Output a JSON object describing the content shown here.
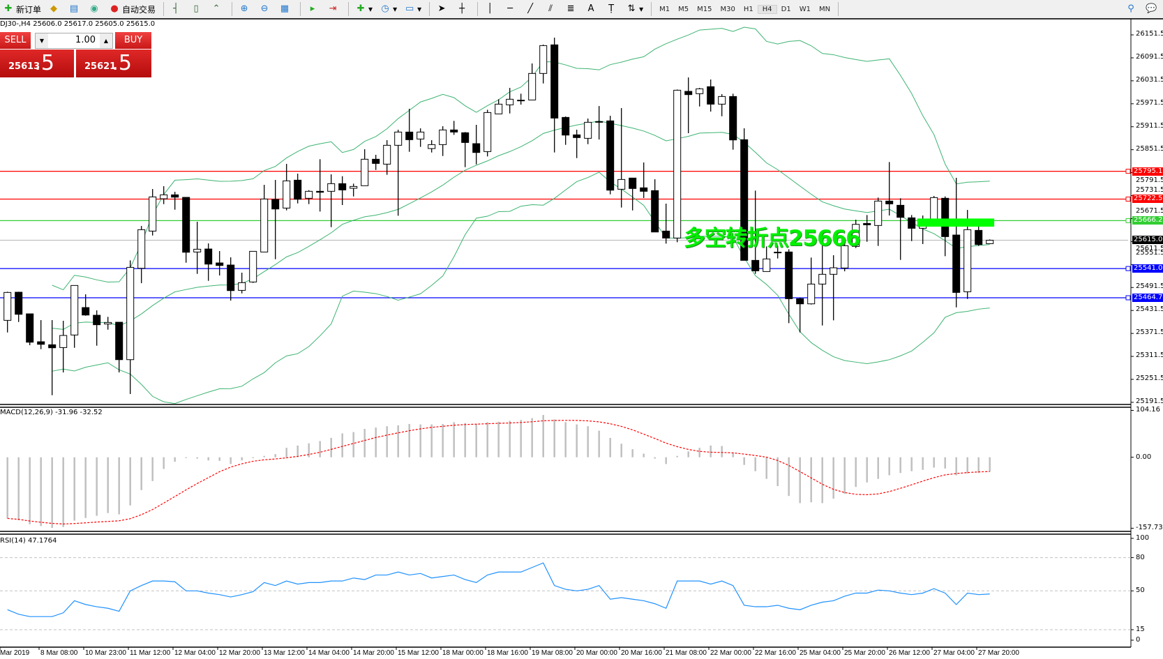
{
  "toolbar": {
    "new_order": "新订单",
    "auto_trading": "自动交易",
    "timeframes": [
      "M1",
      "M5",
      "M15",
      "M30",
      "H1",
      "H4",
      "D1",
      "W1",
      "MN"
    ],
    "active_timeframe": "H4",
    "icons": [
      "new-order-icon",
      "history-icon",
      "market-watch-icon",
      "signals-icon",
      "auto-trading-icon",
      "bar-chart-icon",
      "candlestick-icon",
      "line-chart-icon",
      "zoom-in-icon",
      "zoom-out-icon",
      "tile-windows-icon",
      "autoscroll-icon",
      "chart-shift-icon",
      "indicators-icon",
      "periods-icon",
      "templates-icon",
      "cursor-icon",
      "crosshair-icon",
      "vertical-line-icon",
      "horizontal-line-icon",
      "trendline-icon",
      "equidistant-channel-icon",
      "fibonacci-icon",
      "text-icon",
      "text-label-icon",
      "arrows-icon",
      "search-icon",
      "community-icon"
    ],
    "text_tool": "A"
  },
  "chart": {
    "header": "DJ30-,H4  25606.0 25617.0 25605.0 25615.0",
    "annotation": "多空转折点25666",
    "annotation_color": "#00f000"
  },
  "oneclick": {
    "sell_label": "SELL",
    "buy_label": "BUY",
    "lot": "1.00",
    "sell_price_main": "25613",
    "sell_price_frac": ".5",
    "buy_price_main": "25621",
    "buy_price_frac": ".5"
  },
  "price_axis": [
    "26151.5",
    "26091.5",
    "26031.5",
    "25971.5",
    "25911.5",
    "25851.5",
    "25791.5",
    "25731.5",
    "25671.5",
    "25611.5",
    "25551.5",
    "25491.5",
    "25431.5",
    "25371.5",
    "25311.5",
    "25251.5",
    "25191.5"
  ],
  "price_lines": [
    {
      "price": "25795.1",
      "color": "#ff0000"
    },
    {
      "price": "25722.5",
      "color": "#ff0000"
    },
    {
      "price": "25666.2",
      "color": "#32cd32"
    },
    {
      "price": "25615.0",
      "color": "#c0c0c0",
      "tag": "#000000"
    },
    {
      "price": "25541.0",
      "color": "#0000ff"
    },
    {
      "price": "25464.7",
      "color": "#0000ff"
    }
  ],
  "time_axis": [
    "Mar 2019",
    "8 Mar 08:00",
    "10 Mar 23:00",
    "11 Mar 12:00",
    "12 Mar 04:00",
    "12 Mar 20:00",
    "13 Mar 12:00",
    "14 Mar 04:00",
    "14 Mar 20:00",
    "15 Mar 12:00",
    "18 Mar 00:00",
    "18 Mar 16:00",
    "19 Mar 08:00",
    "20 Mar 00:00",
    "20 Mar 16:00",
    "21 Mar 08:00",
    "22 Mar 00:00",
    "22 Mar 16:00",
    "25 Mar 04:00",
    "25 Mar 20:00",
    "26 Mar 12:00",
    "27 Mar 04:00",
    "27 Mar 20:00"
  ],
  "macd": {
    "label": "MACD(12,26,9) -31.96 -32.52",
    "axis": [
      "104.16",
      "0.00",
      "-157.73"
    ],
    "histogram": [
      -136,
      -140,
      -149,
      -153,
      -157,
      -155,
      -141,
      -135,
      -130,
      -124,
      -127,
      -107,
      -73,
      -53,
      -26,
      -10,
      -2,
      -3,
      -7,
      -8,
      -15,
      -7,
      -2,
      3,
      7,
      21,
      26,
      31,
      36,
      43,
      53,
      56,
      63,
      66,
      69,
      71,
      74,
      73,
      73,
      74,
      78,
      76,
      74,
      78,
      79,
      81,
      83,
      87,
      94,
      84,
      78,
      73,
      69,
      59,
      43,
      30,
      18,
      8,
      -3,
      -15,
      3,
      13,
      21,
      26,
      25,
      10,
      -17,
      -31,
      -48,
      -64,
      -86,
      -102,
      -100,
      -102,
      -92,
      -81,
      -66,
      -56,
      -48,
      -40,
      -35,
      -31,
      -28,
      -23,
      -25,
      -40,
      -36,
      -35,
      -31.96
    ],
    "signal_color": "#ff0000",
    "histogram_color": "#c0c0c0"
  },
  "rsi": {
    "label": "RSI(14) 47.1764",
    "axis": [
      "100",
      "80",
      "50",
      "15",
      "0"
    ],
    "levels": [
      80,
      50,
      15
    ],
    "color": "#1e90ff",
    "values": [
      33.0,
      28.9,
      26.8,
      26.8,
      26.8,
      30.2,
      41.1,
      37.7,
      35.7,
      34.3,
      31.6,
      50.0,
      54.8,
      58.9,
      58.9,
      58.2,
      50.0,
      50.0,
      48.0,
      46.6,
      44.5,
      46.6,
      49.3,
      57.5,
      54.8,
      58.9,
      56.1,
      57.5,
      57.5,
      58.9,
      58.9,
      61.6,
      60.2,
      64.3,
      64.3,
      67.0,
      64.3,
      65.7,
      61.6,
      63.0,
      64.3,
      60.2,
      57.5,
      64.3,
      67.0,
      67.0,
      67.0,
      71.1,
      75.2,
      54.8,
      51.4,
      50.0,
      51.4,
      54.8,
      42.5,
      43.9,
      42.5,
      41.1,
      38.4,
      34.3,
      58.9,
      58.9,
      58.9,
      56.1,
      58.9,
      54.8,
      37.0,
      35.7,
      35.7,
      37.0,
      34.3,
      33.0,
      37.0,
      39.8,
      41.1,
      45.2,
      48.0,
      48.0,
      50.7,
      50.0,
      48.0,
      46.6,
      48.0,
      52.0,
      48.0,
      37.7,
      48.0,
      46.6,
      47.18
    ]
  },
  "bollinger_color": "#3cb371",
  "rectangle": {
    "price_top": 25671.7,
    "price_bottom": 25650.5,
    "from_bar": 81.5,
    "to_bar": 88.4,
    "color": "#00ff00"
  },
  "candles": [
    [
      25405.7,
      25480.4,
      25374.1,
      25478.6
    ],
    [
      25479.2,
      25480.4,
      25401.4,
      25421.5
    ],
    [
      25422.7,
      25422.7,
      25340.7,
      25348.6
    ],
    [
      25349.8,
      25406.3,
      25330.4,
      25343.1
    ],
    [
      25341.9,
      25406.3,
      25210.1,
      25334.0
    ],
    [
      25334.6,
      25404.5,
      25269.6,
      25366.2
    ],
    [
      25367.4,
      25496.8,
      25334.0,
      25496.8
    ],
    [
      25439.1,
      25473.7,
      25417.8,
      25419.6
    ],
    [
      25419.0,
      25431.8,
      25339.5,
      25394.2
    ],
    [
      25396.2,
      25414.8,
      25381.4,
      25400.2
    ],
    [
      25400.8,
      25400.8,
      25269.6,
      25303.0
    ],
    [
      25303.0,
      25562.4,
      25213.2,
      25544.1
    ],
    [
      25541.7,
      25652.2,
      25502.8,
      25642.5
    ],
    [
      25638.9,
      25748.8,
      25627.3,
      25728.2
    ],
    [
      25723.3,
      25756.1,
      25709.3,
      25733.6
    ],
    [
      25733.6,
      25741.5,
      25694.8,
      25727.5
    ],
    [
      25727.0,
      25727.0,
      25556.3,
      25583.6
    ],
    [
      25584.2,
      25663.2,
      25527.1,
      25591.5
    ],
    [
      25592.1,
      25606.7,
      25508.9,
      25552.6
    ],
    [
      25555.7,
      25586.7,
      25522.9,
      25549.0
    ],
    [
      25550.2,
      25570.3,
      25457.3,
      25483.4
    ],
    [
      25484.0,
      25530.2,
      25476.1,
      25504.1
    ],
    [
      25505.9,
      25586.0,
      25503.5,
      25586.0
    ],
    [
      25584.2,
      25759.7,
      25584.2,
      25722.7
    ],
    [
      25721.5,
      25772.5,
      25565.4,
      25696.6
    ],
    [
      25699.0,
      25814.4,
      25693.0,
      25770.1
    ],
    [
      25771.9,
      25788.9,
      25711.2,
      25722.1
    ],
    [
      25724.6,
      25745.8,
      25709.4,
      25742.8
    ],
    [
      25742.8,
      25826.6,
      25689.9,
      25740.3
    ],
    [
      25742.8,
      25787.1,
      25649.2,
      25762.8
    ],
    [
      25762.8,
      25782.2,
      25706.9,
      25746.4
    ],
    [
      25750.7,
      25762.8,
      25729.4,
      25755.5
    ],
    [
      25757.4,
      25852.7,
      25757.4,
      25826.6
    ],
    [
      25826.6,
      25838.1,
      25798.6,
      25815.6
    ],
    [
      25813.8,
      25876.4,
      25785.9,
      25863.0
    ],
    [
      25863.0,
      25903.7,
      25679.0,
      25897.6
    ],
    [
      25897.6,
      25958.4,
      25846.0,
      25877.6
    ],
    [
      25879.4,
      25907.3,
      25858.8,
      25897.6
    ],
    [
      25854.5,
      25876.4,
      25844.2,
      25864.8
    ],
    [
      25864.8,
      25912.8,
      25835.1,
      25903.1
    ],
    [
      25903.1,
      25926.8,
      25890.3,
      25897.6
    ],
    [
      25895.8,
      25897.6,
      25805.9,
      25870.3
    ],
    [
      25867.3,
      25916.5,
      25813.2,
      25844.2
    ],
    [
      25846.6,
      25955.9,
      25833.9,
      25948.6
    ],
    [
      25945.0,
      25983.3,
      25945.0,
      25970.5
    ],
    [
      25968.7,
      26013.0,
      25946.2,
      25983.3
    ],
    [
      25980.8,
      25997.8,
      25969.3,
      25980.9
    ],
    [
      25981.4,
      26076.8,
      25981.4,
      26050.7
    ],
    [
      26050.7,
      26126.0,
      26024.6,
      26123.5
    ],
    [
      26125.4,
      26144.2,
      25844.2,
      25934.1
    ],
    [
      25935.9,
      25938.3,
      25864.2,
      25889.7
    ],
    [
      25890.3,
      25903.7,
      25829.6,
      25883.1
    ],
    [
      25881.2,
      25932.9,
      25866.0,
      25923.1
    ],
    [
      25924.9,
      25965.6,
      25878.2,
      25925.0
    ],
    [
      25926.8,
      25940.1,
      25734.9,
      25745.8
    ],
    [
      25748.2,
      25960.2,
      25700.3,
      25773.7
    ],
    [
      25777.4,
      25777.4,
      25692.9,
      25750.1
    ],
    [
      25751.9,
      25818.1,
      25725.2,
      25742.8
    ],
    [
      25744.6,
      25774.3,
      25636.5,
      25636.5
    ],
    [
      25638.9,
      25710.6,
      25606.1,
      25620.7
    ],
    [
      25620.7,
      26008.8,
      25609.8,
      26006.9
    ],
    [
      26003.9,
      26040.3,
      25894.6,
      25995.4
    ],
    [
      25997.8,
      26013.0,
      25964.4,
      26010.6
    ],
    [
      26016.1,
      26034.9,
      25951.1,
      25970.5
    ],
    [
      25970.5,
      25996.6,
      25938.9,
      25990.5
    ],
    [
      25990.5,
      25997.8,
      25851.5,
      25877.0
    ],
    [
      25877.6,
      25907.3,
      25562.4,
      25562.4
    ],
    [
      25562.4,
      25744.6,
      25527.2,
      25535.1
    ],
    [
      25533.2,
      25598.8,
      25533.2,
      25566.1
    ],
    [
      25583.7,
      25600.7,
      25567.3,
      25583.8
    ],
    [
      25584.3,
      25591.5,
      25398.4,
      25462.2
    ],
    [
      25462.2,
      25465.2,
      25374.1,
      25448.8
    ],
    [
      25448.8,
      25569.7,
      25447.0,
      25500.5
    ],
    [
      25500.5,
      25623.1,
      25392.3,
      25526.0
    ],
    [
      25526.0,
      25575.8,
      25405.7,
      25543.0
    ],
    [
      25542.4,
      25611.0,
      25533.8,
      25600.7
    ],
    [
      25598.8,
      25668.7,
      25594.6,
      25656.5
    ],
    [
      25658.9,
      25680.8,
      25611.0,
      25655.3
    ],
    [
      25653.5,
      25726.4,
      25600.1,
      25717.3
    ],
    [
      25717.3,
      25819.3,
      25679.6,
      25710.0
    ],
    [
      25706.3,
      25724.6,
      25563.6,
      25674.8
    ],
    [
      25673.5,
      25680.8,
      25612.8,
      25646.2
    ],
    [
      25646.2,
      25679.6,
      25605.0,
      25659.6
    ],
    [
      25665.6,
      25730.6,
      25662.6,
      25726.4
    ],
    [
      25724.6,
      25729.4,
      25573.3,
      25624.4
    ],
    [
      25628.6,
      25778.0,
      25439.7,
      25478.6
    ],
    [
      25480.4,
      25694.2,
      25461.6,
      25642.6
    ],
    [
      25640.7,
      25650.5,
      25600.1,
      25603.7
    ],
    [
      25606.0,
      25617.0,
      25605.0,
      25615.0
    ]
  ]
}
